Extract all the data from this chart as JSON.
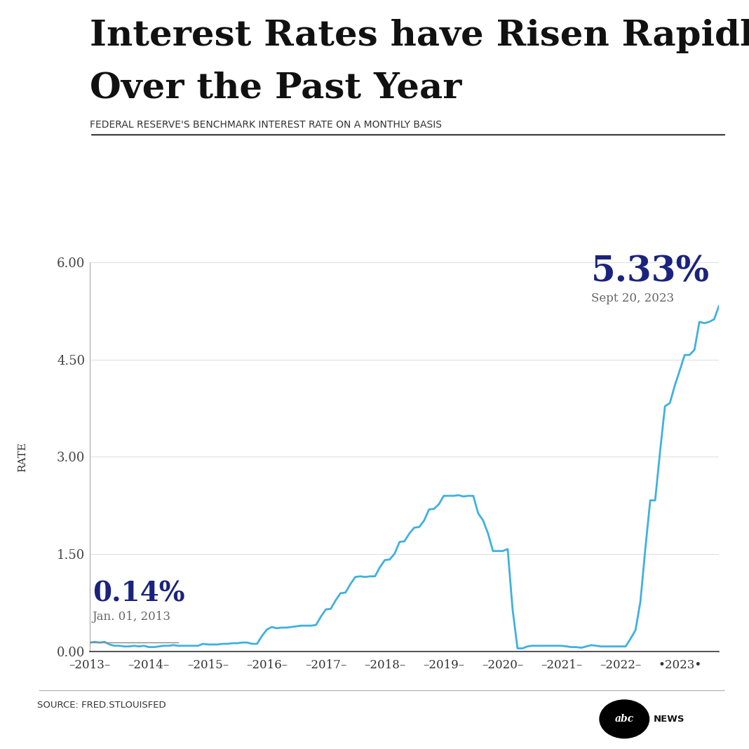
{
  "title_line1": "Interest Rates have Risen Rapidly",
  "title_line2": "Over the Past Year",
  "subtitle": "FEDERAL RESERVE'S BENCHMARK INTEREST RATE ON A MONTHLY BASIS",
  "ylabel": "RATE",
  "source": "SOURCE: FRED.STLOUISFED",
  "annotation_start_value": "0.14%",
  "annotation_start_date": "Jan. 01, 2013",
  "annotation_end_value": "5.33%",
  "annotation_end_date": "Sept 20, 2023",
  "line_color": "#3fb0e0",
  "annotation_color": "#1a237e",
  "background_color": "#ffffff",
  "ylim": [
    0,
    6.0
  ],
  "yticks": [
    0.0,
    1.5,
    3.0,
    4.5,
    6.0
  ],
  "ytick_labels": [
    "0.00",
    "1.50",
    "3.00",
    "4.50",
    "6.00"
  ],
  "values": [
    0.14,
    0.15,
    0.14,
    0.15,
    0.11,
    0.09,
    0.09,
    0.08,
    0.08,
    0.09,
    0.08,
    0.09,
    0.07,
    0.07,
    0.08,
    0.09,
    0.09,
    0.1,
    0.09,
    0.09,
    0.09,
    0.09,
    0.09,
    0.12,
    0.11,
    0.11,
    0.11,
    0.12,
    0.12,
    0.13,
    0.13,
    0.14,
    0.14,
    0.12,
    0.12,
    0.24,
    0.34,
    0.38,
    0.36,
    0.37,
    0.37,
    0.38,
    0.39,
    0.4,
    0.4,
    0.4,
    0.41,
    0.54,
    0.65,
    0.66,
    0.79,
    0.9,
    0.91,
    1.04,
    1.15,
    1.16,
    1.15,
    1.16,
    1.16,
    1.3,
    1.41,
    1.42,
    1.51,
    1.69,
    1.7,
    1.82,
    1.91,
    1.92,
    2.02,
    2.19,
    2.2,
    2.27,
    2.4,
    2.4,
    2.4,
    2.41,
    2.39,
    2.4,
    2.4,
    2.13,
    2.02,
    1.82,
    1.55,
    1.55,
    1.55,
    1.58,
    0.65,
    0.05,
    0.05,
    0.08,
    0.09,
    0.09,
    0.09,
    0.09,
    0.09,
    0.09,
    0.09,
    0.08,
    0.07,
    0.07,
    0.06,
    0.08,
    0.1,
    0.09,
    0.08,
    0.08,
    0.08,
    0.08,
    0.08,
    0.08,
    0.2,
    0.33,
    0.77,
    1.58,
    2.33,
    2.33,
    3.08,
    3.78,
    3.83,
    4.1,
    4.33,
    4.57,
    4.57,
    4.65,
    5.08,
    5.06,
    5.08,
    5.12,
    5.33
  ],
  "xtick_positions": [
    0,
    12,
    24,
    36,
    48,
    60,
    72,
    84,
    96,
    108,
    120
  ],
  "xtick_labels": [
    "–2013–",
    "–2014–",
    "–2015–",
    "–2016–",
    "–2017–",
    "–2018–",
    "–2019–",
    "–2020–",
    "–2021–",
    "–2022–",
    "•2023•"
  ]
}
